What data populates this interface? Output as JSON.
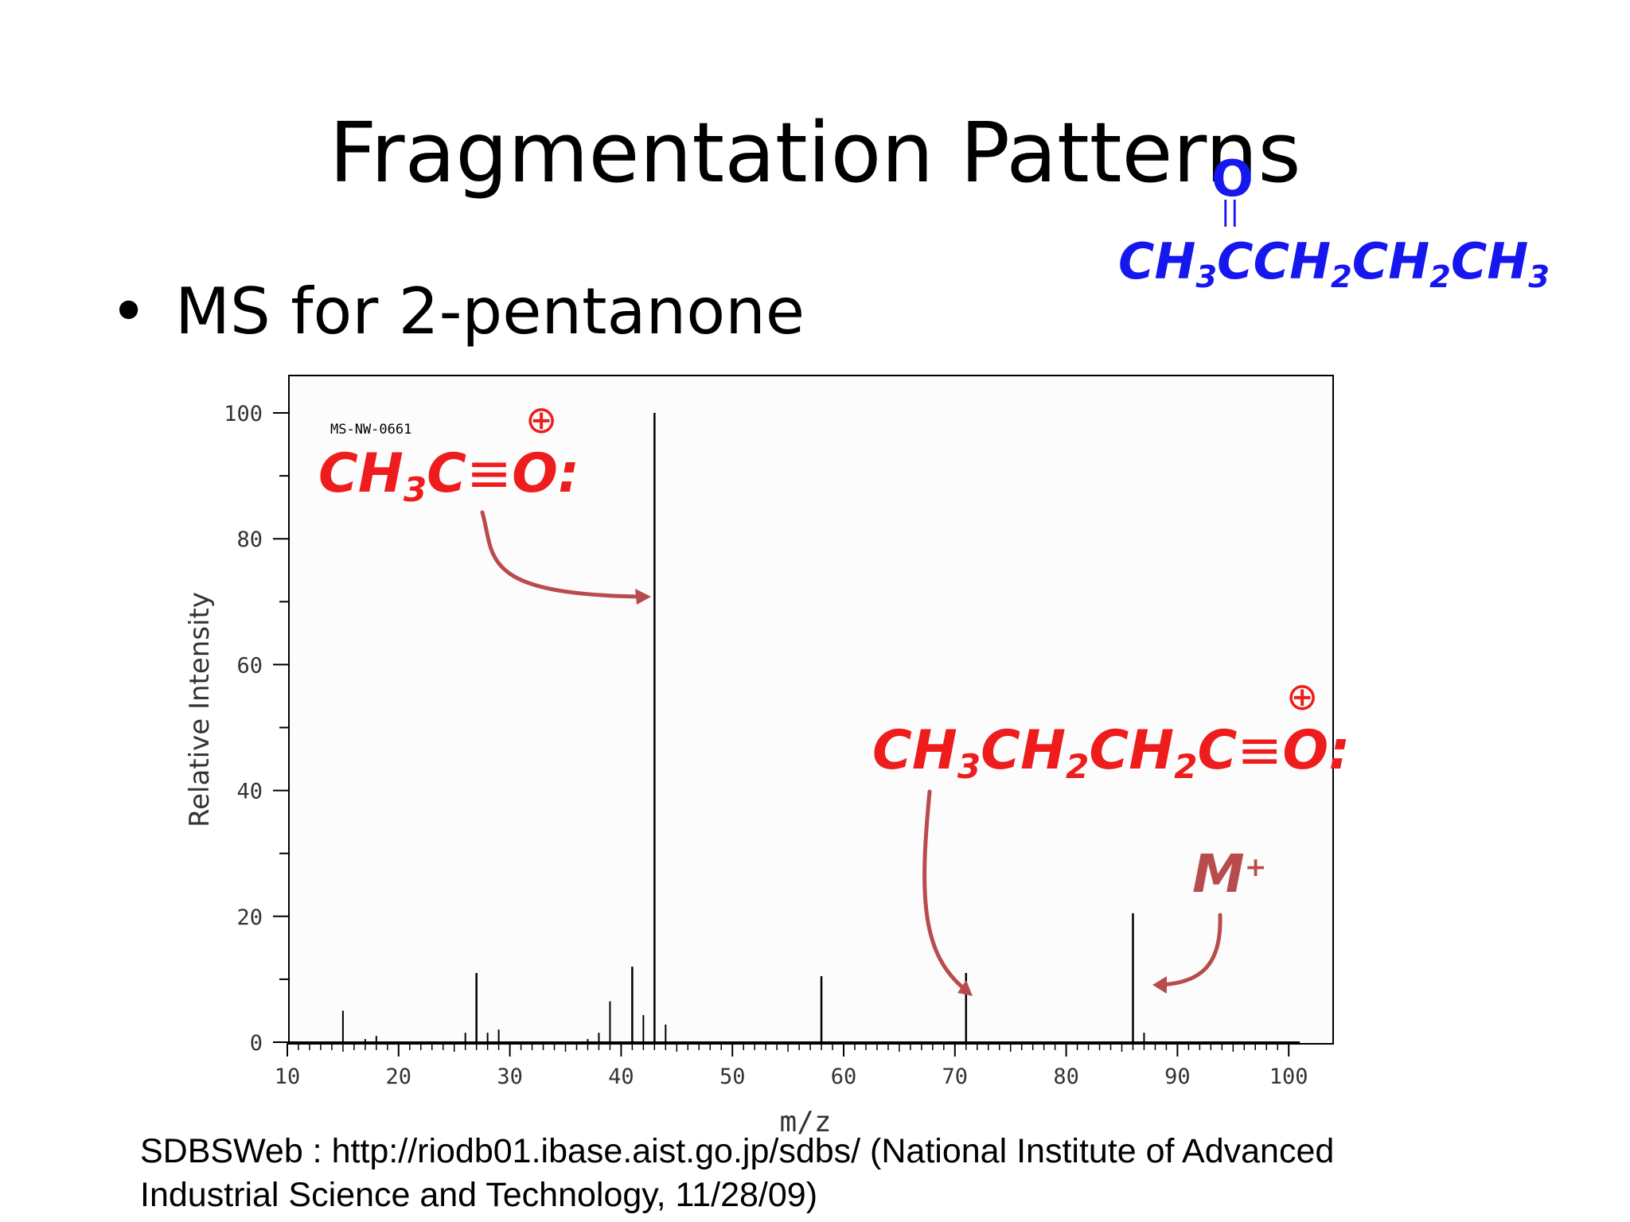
{
  "slide": {
    "title": "Fragmentation Patterns",
    "bullet": "MS for 2-pentanone",
    "bullet_symbol": "•",
    "source_line1": "SDBSWeb : http://riodb01.ibase.aist.go.jp/sdbs/ (National Institute of Advanced",
    "source_line2": "Industrial Science and Technology, 11/28/09)"
  },
  "structure": {
    "carbonyl_o": "O",
    "double_bond": "||",
    "formula_parts": [
      "CH",
      "3",
      "CCH",
      "2",
      "CH",
      "2",
      "CH",
      "3"
    ],
    "color": "#1616ee"
  },
  "annotations": {
    "acylium1": {
      "parts": [
        "CH",
        "3",
        "C",
        "≡",
        "O:"
      ],
      "charge": "⊕",
      "points_to_mz": 43
    },
    "acylium2": {
      "parts": [
        "CH",
        "3",
        "CH",
        "2",
        "CH",
        "2",
        "C",
        "≡",
        "O:"
      ],
      "charge": "⊕",
      "points_to_mz": 71
    },
    "molecular_ion": {
      "label": "M",
      "superscript": "+",
      "points_to_mz": 86
    },
    "label_color": "#ee1c1c",
    "arrow_color": "#b84c4c"
  },
  "chart_data": {
    "type": "bar",
    "spectrum_id": "MS-NW-0661",
    "xlabel": "m/z",
    "ylabel": "Relative Intensity",
    "xlim": [
      10,
      102
    ],
    "ylim": [
      0,
      100
    ],
    "x_ticks": [
      10,
      20,
      30,
      40,
      50,
      60,
      70,
      80,
      90,
      100
    ],
    "y_ticks": [
      0,
      20,
      40,
      60,
      80,
      100
    ],
    "peaks": [
      {
        "mz": 15,
        "intensity": 5
      },
      {
        "mz": 17,
        "intensity": 0.5
      },
      {
        "mz": 18,
        "intensity": 1
      },
      {
        "mz": 26,
        "intensity": 1.5
      },
      {
        "mz": 27,
        "intensity": 11
      },
      {
        "mz": 28,
        "intensity": 1.5
      },
      {
        "mz": 29,
        "intensity": 2
      },
      {
        "mz": 37,
        "intensity": 0.5
      },
      {
        "mz": 38,
        "intensity": 1.5
      },
      {
        "mz": 39,
        "intensity": 6.5
      },
      {
        "mz": 41,
        "intensity": 12
      },
      {
        "mz": 42,
        "intensity": 4.3
      },
      {
        "mz": 43,
        "intensity": 100
      },
      {
        "mz": 44,
        "intensity": 2.8
      },
      {
        "mz": 58,
        "intensity": 10.5
      },
      {
        "mz": 71,
        "intensity": 11
      },
      {
        "mz": 86,
        "intensity": 20.5
      },
      {
        "mz": 87,
        "intensity": 1.5
      }
    ]
  }
}
